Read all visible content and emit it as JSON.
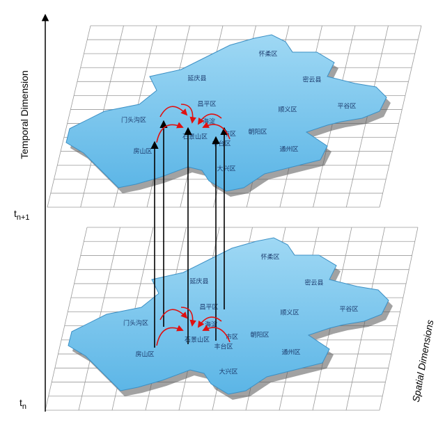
{
  "axes": {
    "temporal": "Temporal Dimension",
    "spatial": "Spatial Dimensions"
  },
  "time_labels": [
    {
      "base": "t",
      "sub": "n+1"
    },
    {
      "base": "t",
      "sub": "n"
    }
  ],
  "layers": [
    {
      "districts": [
        "怀柔区",
        "延庆县",
        "密云县",
        "昌平区",
        "平谷区",
        "门头沟区",
        "海淀",
        "顺义区",
        "石景山区",
        "市区",
        "朝阳区",
        "丰台区",
        "房山区",
        "通州区",
        "大兴区"
      ]
    },
    {
      "districts": [
        "怀柔区",
        "延庆县",
        "密云县",
        "昌平区",
        "平谷区",
        "门头沟区",
        "海淀",
        "顺义区",
        "石景山区",
        "市区",
        "朝阳区",
        "丰台区",
        "房山区",
        "通州区",
        "大兴区"
      ]
    }
  ]
}
